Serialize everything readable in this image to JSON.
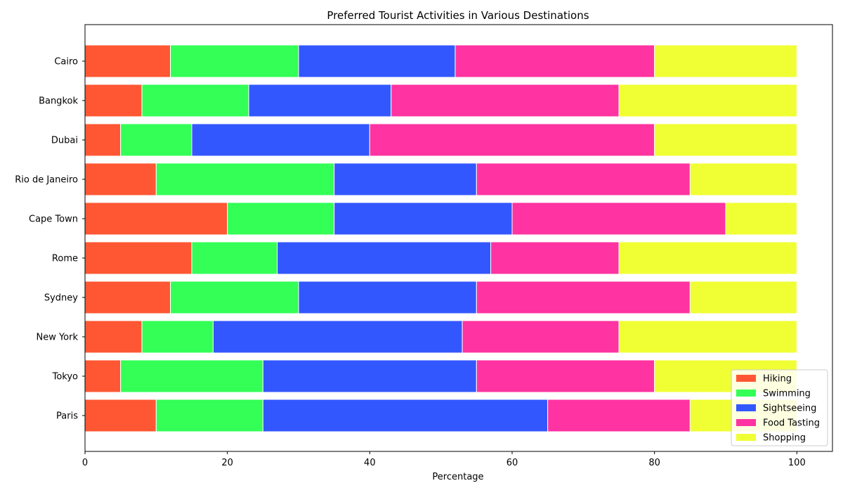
{
  "chart_data": {
    "type": "bar",
    "orientation": "horizontal",
    "stacked": true,
    "title": "Preferred Tourist Activities in Various Destinations",
    "xlabel": "Percentage",
    "ylabel": "",
    "xlim": [
      0,
      105
    ],
    "xticks": [
      0,
      20,
      40,
      60,
      80,
      100
    ],
    "grid": false,
    "legend_position": "lower right",
    "categories": [
      "Paris",
      "Tokyo",
      "New York",
      "Sydney",
      "Rome",
      "Cape Town",
      "Rio de Janeiro",
      "Dubai",
      "Bangkok",
      "Cairo"
    ],
    "series": [
      {
        "name": "Hiking",
        "color": "#ff5733",
        "values": [
          10,
          5,
          8,
          12,
          15,
          20,
          10,
          5,
          8,
          12
        ]
      },
      {
        "name": "Swimming",
        "color": "#33ff57",
        "values": [
          15,
          20,
          10,
          18,
          12,
          15,
          25,
          10,
          15,
          18
        ]
      },
      {
        "name": "Sightseeing",
        "color": "#3357ff",
        "values": [
          40,
          30,
          35,
          25,
          30,
          25,
          20,
          25,
          20,
          22
        ]
      },
      {
        "name": "Food Tasting",
        "color": "#ff33a1",
        "values": [
          20,
          25,
          22,
          30,
          18,
          30,
          30,
          40,
          32,
          28
        ]
      },
      {
        "name": "Shopping",
        "color": "#f0ff33",
        "values": [
          15,
          20,
          25,
          15,
          25,
          10,
          15,
          20,
          25,
          20
        ]
      }
    ]
  }
}
